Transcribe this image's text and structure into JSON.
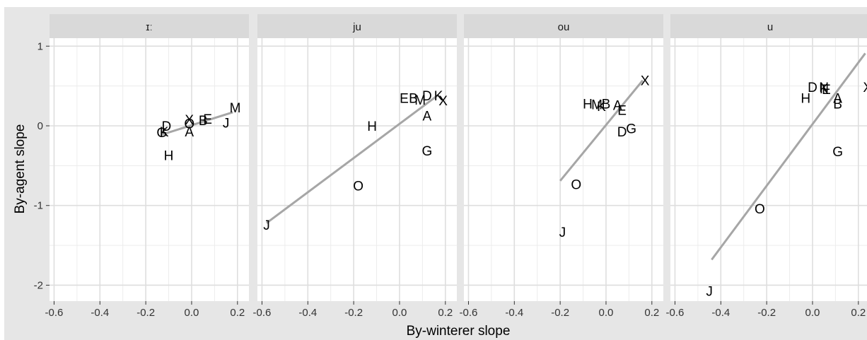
{
  "chart_data": {
    "type": "scatter",
    "xlabel": "By-winterer slope",
    "ylabel": "By-agent slope",
    "xlim": [
      -0.62,
      0.25
    ],
    "ylim": [
      -2.2,
      1.1
    ],
    "x_ticks": [
      -0.6,
      -0.4,
      -0.2,
      0.0,
      0.2
    ],
    "x_tick_labels": [
      "-0.6",
      "-0.4",
      "-0.2",
      "0.0",
      "0.2"
    ],
    "y_ticks": [
      1,
      0,
      -1,
      -2
    ],
    "y_tick_labels": [
      "1",
      "0",
      "-1",
      "-2"
    ],
    "grid": true,
    "panels": [
      {
        "title": "ɪː",
        "points": [
          {
            "label": "X",
            "x": -0.01,
            "y": 0.08
          },
          {
            "label": "M",
            "x": 0.19,
            "y": 0.23
          },
          {
            "label": "E",
            "x": 0.07,
            "y": 0.09
          },
          {
            "label": "B",
            "x": 0.05,
            "y": 0.07
          },
          {
            "label": "O",
            "x": -0.01,
            "y": 0.03
          },
          {
            "label": "J",
            "x": 0.15,
            "y": 0.04
          },
          {
            "label": "D",
            "x": -0.11,
            "y": 0.0
          },
          {
            "label": "A",
            "x": -0.01,
            "y": -0.07
          },
          {
            "label": "G",
            "x": -0.13,
            "y": -0.08
          },
          {
            "label": "K",
            "x": -0.12,
            "y": -0.07
          },
          {
            "label": "H",
            "x": -0.1,
            "y": -0.37
          }
        ],
        "fit": {
          "x": [
            -0.13,
            0.18
          ],
          "y": [
            -0.11,
            0.17
          ]
        }
      },
      {
        "title": "ju",
        "points": [
          {
            "label": "E",
            "x": 0.02,
            "y": 0.35
          },
          {
            "label": "B",
            "x": 0.06,
            "y": 0.35
          },
          {
            "label": "M",
            "x": 0.09,
            "y": 0.33
          },
          {
            "label": "D",
            "x": 0.12,
            "y": 0.38
          },
          {
            "label": "K",
            "x": 0.17,
            "y": 0.38
          },
          {
            "label": "X",
            "x": 0.19,
            "y": 0.32
          },
          {
            "label": "A",
            "x": 0.12,
            "y": 0.13
          },
          {
            "label": "H",
            "x": -0.12,
            "y": 0.0
          },
          {
            "label": "G",
            "x": 0.12,
            "y": -0.31
          },
          {
            "label": "O",
            "x": -0.18,
            "y": -0.75
          },
          {
            "label": "J",
            "x": -0.58,
            "y": -1.24
          }
        ],
        "fit": {
          "x": [
            -0.58,
            0.17
          ],
          "y": [
            -1.22,
            0.39
          ]
        }
      },
      {
        "title": "ou",
        "points": [
          {
            "label": "X",
            "x": 0.17,
            "y": 0.57
          },
          {
            "label": "H",
            "x": -0.08,
            "y": 0.28
          },
          {
            "label": "M",
            "x": -0.04,
            "y": 0.27
          },
          {
            "label": "B",
            "x": 0.0,
            "y": 0.28
          },
          {
            "label": "K",
            "x": -0.02,
            "y": 0.25
          },
          {
            "label": "A",
            "x": 0.05,
            "y": 0.26
          },
          {
            "label": "E",
            "x": 0.07,
            "y": 0.2
          },
          {
            "label": "G",
            "x": 0.11,
            "y": -0.03
          },
          {
            "label": "D",
            "x": 0.07,
            "y": -0.07
          },
          {
            "label": "O",
            "x": -0.13,
            "y": -0.73
          },
          {
            "label": "J",
            "x": -0.19,
            "y": -1.33
          }
        ],
        "fit": {
          "x": [
            -0.2,
            0.16
          ],
          "y": [
            -0.69,
            0.57
          ]
        }
      },
      {
        "title": "u",
        "points": [
          {
            "label": "D",
            "x": 0.0,
            "y": 0.49
          },
          {
            "label": "N",
            "x": 0.05,
            "y": 0.49
          },
          {
            "label": "K",
            "x": 0.05,
            "y": 0.47
          },
          {
            "label": "E",
            "x": 0.06,
            "y": 0.46
          },
          {
            "label": "X",
            "x": 0.24,
            "y": 0.49
          },
          {
            "label": "H",
            "x": -0.03,
            "y": 0.35
          },
          {
            "label": "A",
            "x": 0.11,
            "y": 0.35
          },
          {
            "label": "B",
            "x": 0.11,
            "y": 0.28
          },
          {
            "label": "G",
            "x": 0.11,
            "y": -0.32
          },
          {
            "label": "O",
            "x": -0.23,
            "y": -1.04
          },
          {
            "label": "J",
            "x": -0.45,
            "y": -2.07
          }
        ],
        "fit": {
          "x": [
            -0.44,
            0.23
          ],
          "y": [
            -1.68,
            0.91
          ]
        }
      }
    ]
  }
}
